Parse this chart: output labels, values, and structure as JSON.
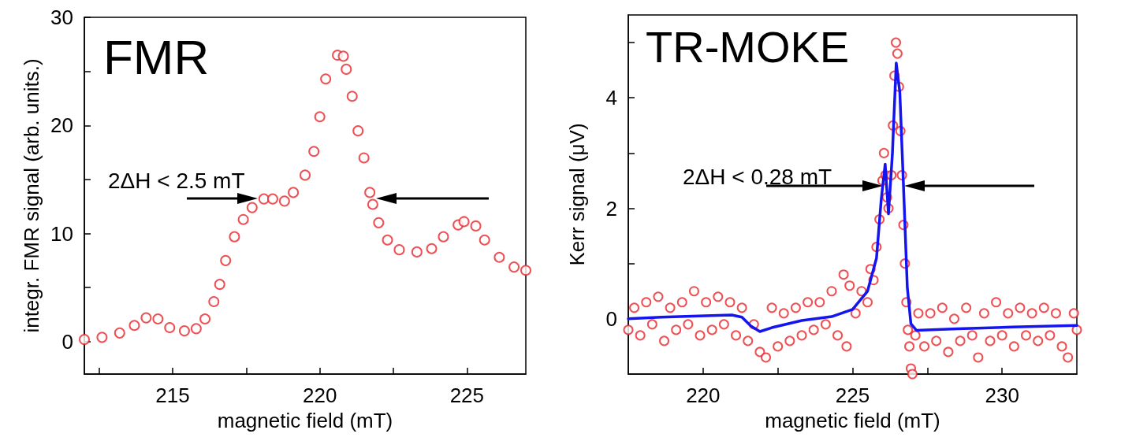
{
  "chart_data": [
    {
      "type": "scatter",
      "title": "FMR",
      "xlabel": "magnetic field (mT)",
      "ylabel": "integr. FMR signal (arb. units.)",
      "annotations": [
        "2ΔH < 2.5 mT"
      ],
      "xlim": [
        212,
        227
      ],
      "ylim": [
        -3,
        30
      ],
      "xticks": [
        {
          "value": 212.5,
          "label": null
        },
        215,
        {
          "value": 217.5,
          "label": null
        },
        220,
        {
          "value": 222.5,
          "label": null
        },
        225
      ],
      "yticks": [
        0,
        {
          "value": 5,
          "label": null
        },
        10,
        {
          "value": 15,
          "label": null
        },
        20,
        {
          "value": 25,
          "label": null
        },
        30
      ],
      "grid": false,
      "marker": "circle",
      "series": [
        {
          "color": "#e8262b",
          "x": [
            212,
            212.6,
            213.2,
            213.7,
            214.1,
            214.5,
            214.9,
            215.4,
            215.8,
            216.1,
            216.4,
            216.6,
            216.8,
            217.1,
            217.4,
            217.7,
            218.1,
            218.4,
            218.8,
            219.1,
            219.5,
            219.8,
            220.0,
            220.2,
            220.6,
            220.8,
            220.9,
            221.1,
            221.3,
            221.5,
            221.7,
            221.8,
            222.0,
            222.3,
            222.7,
            223.3,
            223.8,
            224.2,
            224.7,
            224.9,
            225.3,
            225.6,
            226.1,
            226.6,
            227.0
          ],
          "values": [
            0.2,
            0.4,
            0.8,
            1.5,
            2.2,
            2.1,
            1.3,
            1.0,
            1.2,
            2.1,
            3.7,
            5.3,
            7.5,
            9.7,
            11.3,
            12.4,
            13.2,
            13.2,
            13.0,
            13.8,
            15.4,
            17.6,
            20.8,
            24.3,
            26.5,
            26.4,
            25.2,
            22.7,
            19.5,
            17.0,
            13.8,
            12.7,
            11.0,
            9.4,
            8.5,
            8.3,
            8.6,
            9.7,
            10.8,
            11.1,
            10.7,
            9.4,
            7.8,
            6.9,
            6.6
          ]
        }
      ]
    },
    {
      "type": "scatter",
      "title": "TR-MOKE",
      "xlabel": "magnetic field (mT)",
      "ylabel": "Kerr signal (μV)",
      "annotations": [
        "2ΔH < 0.28 mT"
      ],
      "xlim": [
        217.5,
        232.5
      ],
      "ylim": [
        -1,
        5.5
      ],
      "xticks": [
        220,
        {
          "value": 222.5,
          "label": null
        },
        225,
        {
          "value": 227.5,
          "label": null
        },
        230
      ],
      "yticks": [
        0,
        {
          "value": 1,
          "label": null
        },
        2,
        {
          "value": 3,
          "label": null
        },
        4,
        {
          "value": 5,
          "label": null
        }
      ],
      "grid": false,
      "marker": "circle",
      "series": [
        {
          "color": "#e8262b",
          "x": [
            217.5,
            217.7,
            217.9,
            218.1,
            218.3,
            218.5,
            218.7,
            218.9,
            219.1,
            219.3,
            219.5,
            219.7,
            219.9,
            220.1,
            220.3,
            220.5,
            220.7,
            220.9,
            221.1,
            221.3,
            221.5,
            221.7,
            221.9,
            222.1,
            222.3,
            222.5,
            222.7,
            222.9,
            223.1,
            223.3,
            223.5,
            223.7,
            223.9,
            224.1,
            224.3,
            224.5,
            224.7,
            224.8,
            224.9,
            225.1,
            225.3,
            225.5,
            225.6,
            225.7,
            225.8,
            225.9,
            226.0,
            226.05,
            226.1,
            226.15,
            226.2,
            226.3,
            226.35,
            226.4,
            226.45,
            226.5,
            226.55,
            226.6,
            226.65,
            226.7,
            226.75,
            226.8,
            226.85,
            226.9,
            226.95,
            227.0,
            227.1,
            227.2,
            227.4,
            227.6,
            227.8,
            228.0,
            228.2,
            228.4,
            228.6,
            228.8,
            229.0,
            229.2,
            229.4,
            229.6,
            229.8,
            230.0,
            230.2,
            230.4,
            230.6,
            230.8,
            231.0,
            231.2,
            231.4,
            231.6,
            231.8,
            232.0,
            232.2,
            232.4,
            232.5
          ],
          "values": [
            -0.2,
            0.2,
            -0.3,
            0.3,
            -0.1,
            0.4,
            -0.4,
            0.2,
            -0.2,
            0.3,
            -0.1,
            0.5,
            -0.3,
            0.3,
            -0.2,
            0.4,
            -0.1,
            0.3,
            -0.3,
            0.2,
            -0.4,
            -0.1,
            -0.6,
            -0.7,
            0.2,
            -0.5,
            0.1,
            -0.4,
            0.2,
            -0.3,
            0.3,
            -0.2,
            0.3,
            -0.1,
            0.5,
            -0.3,
            0.8,
            -0.5,
            0.6,
            0.1,
            0.5,
            0.3,
            0.9,
            0.7,
            1.3,
            1.8,
            2.5,
            3.0,
            2.6,
            2.2,
            2.0,
            2.6,
            3.5,
            4.4,
            5.0,
            4.8,
            4.2,
            3.4,
            2.6,
            1.7,
            1.0,
            0.3,
            -0.2,
            -0.5,
            -0.9,
            -1.0,
            -0.3,
            0.1,
            -0.5,
            0.1,
            -0.4,
            0.2,
            -0.6,
            0.0,
            -0.4,
            0.2,
            -0.3,
            -0.7,
            0.1,
            -0.4,
            0.3,
            -0.3,
            0.1,
            -0.5,
            0.2,
            -0.3,
            0.1,
            -0.4,
            0.2,
            -0.3,
            0.1,
            -0.5,
            -0.7,
            0.1,
            -0.2
          ]
        },
        {
          "type": "line",
          "color": "#1414f0",
          "marker": "none",
          "line_style": "solid",
          "x": [
            217.5,
            218.6,
            219.85,
            220.96,
            221.3,
            221.6,
            221.9,
            222.3,
            223.3,
            224.3,
            225.0,
            225.5,
            225.8,
            225.96,
            226.09,
            226.2,
            226.33,
            226.46,
            226.58,
            226.7,
            226.83,
            226.95,
            227.14,
            228.5,
            230.35,
            232.5
          ],
          "values": [
            0,
            0.03,
            0.05,
            0.07,
            0.03,
            -0.13,
            -0.23,
            -0.16,
            -0.03,
            0.04,
            0.17,
            0.5,
            1.1,
            2.17,
            2.8,
            1.9,
            2.97,
            4.63,
            4.1,
            2.44,
            0.57,
            -0.09,
            -0.21,
            -0.18,
            -0.15,
            -0.12
          ]
        }
      ]
    }
  ]
}
